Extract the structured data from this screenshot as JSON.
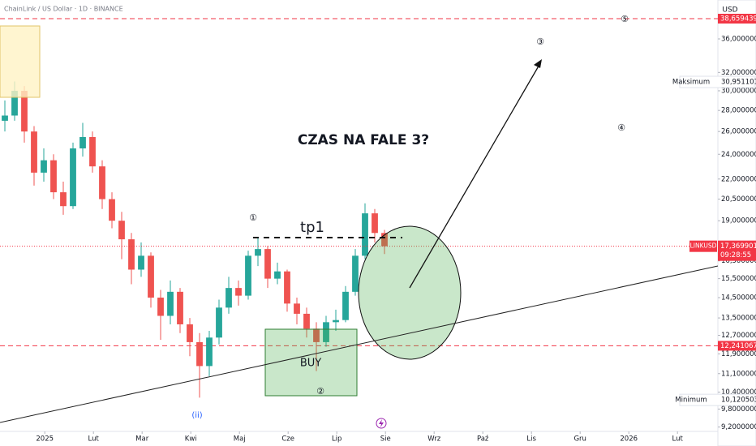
{
  "header": {
    "symbol": "ChainLink / US Dollar · 1D · BINANCE",
    "currency": "USD"
  },
  "chart_data": {
    "type": "candlestick",
    "log_scale": true,
    "up_color": "#26a69a",
    "down_color": "#ef5350",
    "x": [
      -0.82,
      -0.62,
      -0.42,
      -0.22,
      -0.02,
      0.18,
      0.38,
      0.58,
      0.78,
      0.98,
      1.18,
      1.38,
      1.58,
      1.78,
      1.98,
      2.18,
      2.38,
      2.58,
      2.78,
      2.98,
      3.18,
      3.38,
      3.58,
      3.78,
      3.98,
      4.18,
      4.38,
      4.58,
      4.78,
      4.98,
      5.18,
      5.38,
      5.58,
      5.78,
      5.98,
      6.18,
      6.38,
      6.58,
      6.78,
      6.98
    ],
    "open": [
      27.0,
      27.5,
      30.0,
      26.0,
      22.5,
      23.5,
      21.0,
      20.0,
      24.5,
      25.5,
      23.0,
      20.5,
      19.0,
      17.8,
      16.0,
      16.8,
      14.5,
      13.6,
      14.8,
      13.2,
      12.4,
      11.4,
      12.6,
      14.0,
      15.0,
      14.6,
      16.8,
      17.2,
      15.5,
      15.9,
      14.2,
      13.7,
      13.0,
      12.4,
      13.3,
      13.4,
      14.8,
      16.8,
      19.5,
      18.2
    ],
    "high": [
      29.0,
      31.0,
      30.5,
      26.5,
      24.5,
      24.0,
      21.8,
      25.0,
      26.8,
      26.0,
      23.5,
      21.0,
      19.6,
      18.2,
      17.6,
      17.0,
      14.9,
      15.4,
      15.0,
      13.5,
      12.8,
      12.9,
      14.4,
      15.6,
      15.4,
      17.1,
      17.9,
      17.4,
      16.4,
      16.0,
      14.5,
      14.0,
      13.3,
      13.6,
      13.9,
      15.1,
      17.2,
      20.2,
      19.8,
      18.4
    ],
    "low": [
      26.0,
      27.0,
      25.0,
      21.5,
      21.8,
      20.5,
      19.4,
      19.8,
      23.8,
      22.5,
      19.8,
      18.5,
      16.6,
      15.2,
      15.6,
      14.0,
      12.5,
      13.2,
      12.8,
      11.8,
      10.2,
      11.0,
      12.3,
      13.7,
      14.1,
      14.4,
      16.2,
      15.0,
      15.2,
      13.8,
      13.2,
      12.6,
      11.2,
      12.2,
      12.9,
      13.3,
      14.6,
      16.6,
      17.6,
      16.9
    ],
    "close": [
      27.5,
      30.0,
      26.0,
      22.5,
      23.5,
      21.0,
      20.0,
      24.5,
      25.5,
      23.0,
      20.5,
      19.0,
      17.8,
      16.0,
      16.8,
      14.5,
      13.6,
      14.8,
      13.2,
      12.4,
      11.4,
      12.6,
      14.0,
      15.0,
      14.6,
      16.8,
      17.2,
      15.5,
      15.9,
      14.2,
      13.7,
      13.0,
      12.4,
      13.3,
      13.4,
      14.8,
      16.8,
      19.5,
      18.2,
      17.37
    ],
    "xlim": [
      -0.92,
      13.83
    ],
    "xticks": [
      {
        "value": 0,
        "label": "2025"
      },
      {
        "value": 1,
        "label": "Lut"
      },
      {
        "value": 2,
        "label": "Mar"
      },
      {
        "value": 3,
        "label": "Kwi"
      },
      {
        "value": 4,
        "label": "Maj"
      },
      {
        "value": 5,
        "label": "Cze"
      },
      {
        "value": 6,
        "label": "Lip"
      },
      {
        "value": 7,
        "label": "Sie"
      },
      {
        "value": 8,
        "label": "Wrz"
      },
      {
        "value": 9,
        "label": "Paź"
      },
      {
        "value": 10,
        "label": "Lis"
      },
      {
        "value": 11,
        "label": "Gru"
      },
      {
        "value": 12,
        "label": "2026"
      },
      {
        "value": 13,
        "label": "Lut"
      }
    ],
    "ylim": [
      9.06,
      41.28
    ],
    "yticks": [
      {
        "value": 36,
        "label": "36,0000000"
      },
      {
        "value": 32,
        "label": "32,0000000"
      },
      {
        "value": 30,
        "label": "30,0000000"
      },
      {
        "value": 28,
        "label": "28,0000000"
      },
      {
        "value": 26,
        "label": "26,0000000"
      },
      {
        "value": 24,
        "label": "24,0000000"
      },
      {
        "value": 22,
        "label": "22,0000000"
      },
      {
        "value": 20.5,
        "label": "20,5000000"
      },
      {
        "value": 19,
        "label": "19,0000000"
      },
      {
        "value": 16.5,
        "label": "16,5000000"
      },
      {
        "value": 15.5,
        "label": "15,5000000"
      },
      {
        "value": 14.5,
        "label": "14,5000000"
      },
      {
        "value": 13.5,
        "label": "13,5000000"
      },
      {
        "value": 12.7,
        "label": "12,7000000"
      },
      {
        "value": 11.9,
        "label": "11,9000000"
      },
      {
        "value": 11.1,
        "label": "11,1000000"
      },
      {
        "value": 10.4,
        "label": "10,4000000"
      },
      {
        "value": 9.8,
        "label": "9,8000000"
      },
      {
        "value": 9.2,
        "label": "9,2000000"
      }
    ],
    "levels": [
      {
        "value": 38.6594393,
        "label": "38,6594393",
        "color": "#f23645"
      },
      {
        "value": 12.2410673,
        "label": "12,2410673",
        "color": "#f23645"
      }
    ],
    "maximum": {
      "name": "Maksimum",
      "value": 30.9511019,
      "label": "30,9511019"
    },
    "minimum": {
      "name": "Minimum",
      "value": 10.1205033,
      "label": "10,1205033"
    },
    "last_price": {
      "name": "LINKUSD",
      "value": 17.3699018,
      "label": "17,3699018",
      "countdown": "09:28:55",
      "color": "#f23645"
    },
    "annotations": {
      "title": "CZAS NA FALE 3?",
      "tp1": "tp1",
      "buy": "BUY",
      "waves": [
        "①",
        "②",
        "③",
        "④",
        "⑤",
        "(ii)"
      ]
    }
  }
}
